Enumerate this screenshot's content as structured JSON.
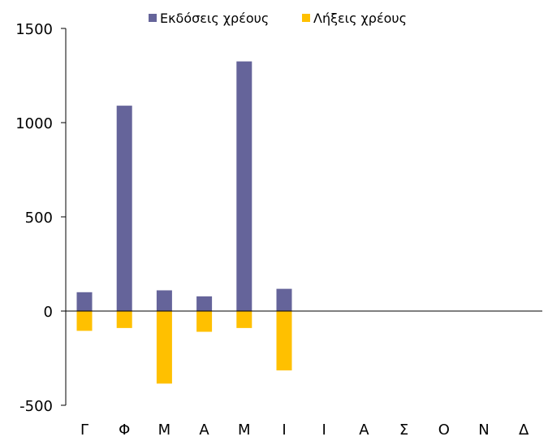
{
  "chart_data": {
    "type": "bar",
    "categories": [
      "Γ",
      "Φ",
      "Μ",
      "Α",
      "Μ",
      "Ι",
      "Ι",
      "Α",
      "Σ",
      "Ο",
      "Ν",
      "Δ"
    ],
    "series": [
      {
        "name": "Εκδόσεις χρέους",
        "color": "#65649A",
        "values": [
          100,
          1090,
          110,
          78,
          1325,
          118,
          null,
          null,
          null,
          null,
          null,
          null
        ]
      },
      {
        "name": "Λήξεις χρέους",
        "color": "#FFC000",
        "values": [
          -105,
          -90,
          -385,
          -110,
          -90,
          -315,
          null,
          null,
          null,
          null,
          null,
          null
        ]
      }
    ],
    "ylim": [
      -500,
      1500
    ],
    "yticks": [
      -500,
      0,
      500,
      1000,
      1500
    ],
    "title": "",
    "xlabel": "",
    "ylabel": "",
    "legend_position": "top"
  }
}
